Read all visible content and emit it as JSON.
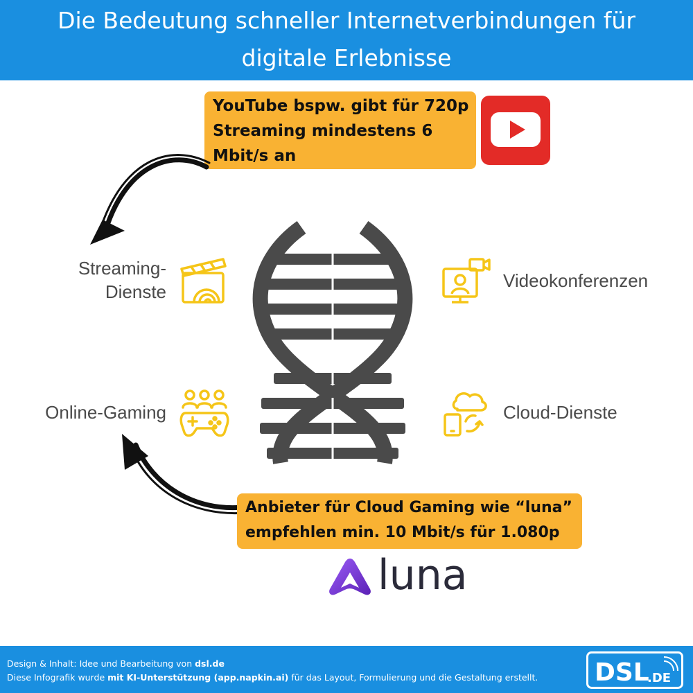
{
  "header": {
    "title_line1": "Die Bedeutung schneller Internetverbindungen für",
    "title_line2": "digitale Erlebnisse"
  },
  "callouts": {
    "youtube": {
      "line1": "YouTube bspw. gibt für 720p",
      "line2": "Streaming mindestens 6",
      "line3": "Mbit/s an"
    },
    "luna": {
      "line1": "Anbieter für Cloud Gaming wie “luna”",
      "line2": "empfehlen min. 10 Mbit/s für 1.080p"
    }
  },
  "categories": {
    "streaming_line1": "Streaming-",
    "streaming_line2": "Dienste",
    "video": "Videokonferenzen",
    "gaming": "Online-Gaming",
    "cloud": "Cloud-Dienste"
  },
  "icons": {
    "streaming": "clapperboard-icon",
    "video": "video-conference-icon",
    "gaming": "gamepad-icon",
    "cloud": "cloud-sync-icon",
    "youtube": "youtube-logo",
    "center": "dna-helix"
  },
  "logos": {
    "luna_word": "luna",
    "dsl_word": "DSL",
    "dsl_suffix": ".DE"
  },
  "footer": {
    "line1_prefix": "Design & Inhalt: Idee und Bearbeitung von ",
    "line1_bold": "dsl.de",
    "line2_prefix": "Diese Infografik wurde ",
    "line2_bold": "mit KI-Unterstützung (app.napkin.ai)",
    "line2_suffix": " für das Layout, Formulierung und die Gestaltung erstellt."
  },
  "colors": {
    "header_bg": "#1a8fe0",
    "callout_bg": "#f9b233",
    "icon_accent": "#f5c518",
    "helix": "#4a4a4a",
    "youtube_red": "#e32b27",
    "luna_purple": "#7b3fe4"
  }
}
